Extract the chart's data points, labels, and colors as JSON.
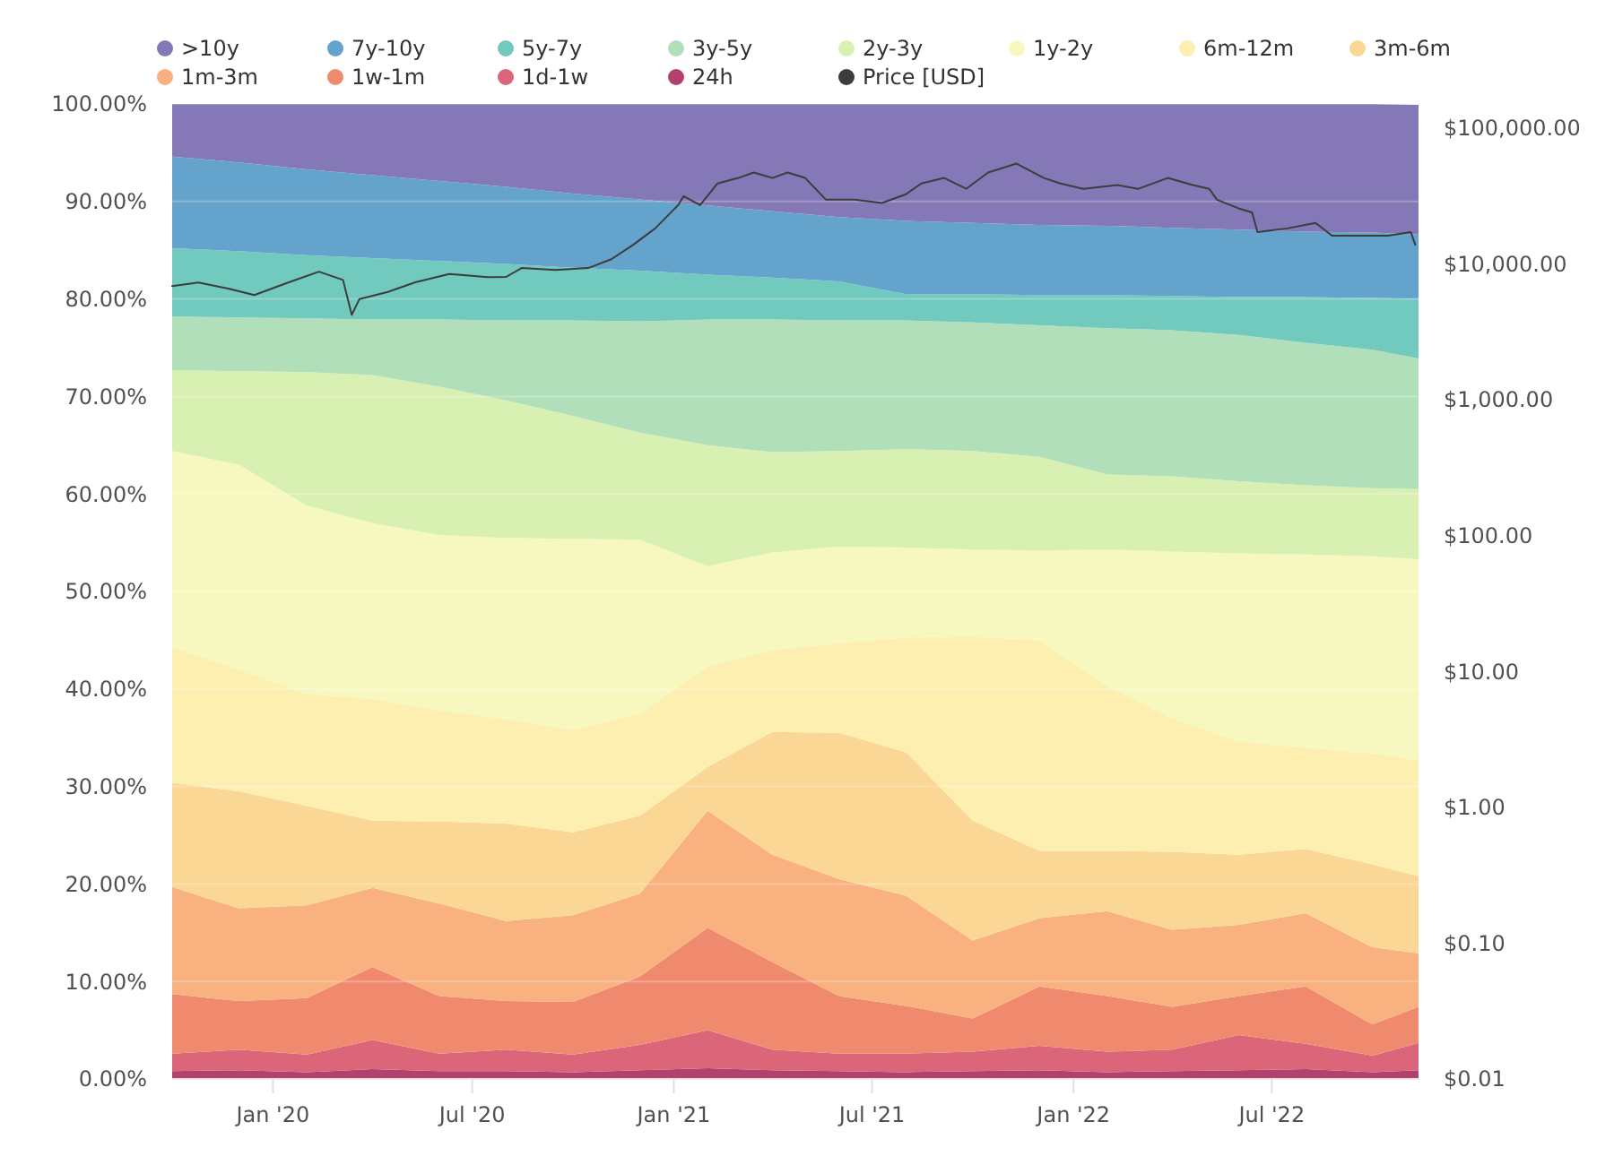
{
  "chart_data": {
    "type": "area",
    "stacked": true,
    "legend": "top",
    "grid": "y",
    "log": "y2",
    "x": [
      "2019-10-01",
      "2019-12-01",
      "2020-02-01",
      "2020-04-01",
      "2020-06-01",
      "2020-08-01",
      "2020-10-01",
      "2020-12-01",
      "2021-02-01",
      "2021-04-01",
      "2021-06-01",
      "2021-08-01",
      "2021-10-01",
      "2021-12-01",
      "2022-02-01",
      "2022-04-01",
      "2022-06-01",
      "2022-08-01",
      "2022-10-01",
      "2022-11-12"
    ],
    "xlim": [
      "2019-10-01",
      "2022-11-12"
    ],
    "xticks": [
      {
        "value": "2020-01-01",
        "label": "Jan '20"
      },
      {
        "value": "2020-07-01",
        "label": "Jul '20"
      },
      {
        "value": "2021-01-01",
        "label": "Jan '21"
      },
      {
        "value": "2021-07-01",
        "label": "Jul '21"
      },
      {
        "value": "2022-01-01",
        "label": "Jan '22"
      },
      {
        "value": "2022-07-01",
        "label": "Jul '22"
      }
    ],
    "ylim": [
      0,
      100
    ],
    "yticks": [
      {
        "value": 0,
        "label": "0.00%"
      },
      {
        "value": 10,
        "label": "10.00%"
      },
      {
        "value": 20,
        "label": "20.00%"
      },
      {
        "value": 30,
        "label": "30.00%"
      },
      {
        "value": 40,
        "label": "40.00%"
      },
      {
        "value": 50,
        "label": "50.00%"
      },
      {
        "value": 60,
        "label": "60.00%"
      },
      {
        "value": 70,
        "label": "70.00%"
      },
      {
        "value": 80,
        "label": "80.00%"
      },
      {
        "value": 90,
        "label": "90.00%"
      },
      {
        "value": 100,
        "label": "100.00%"
      }
    ],
    "y2lim": [
      0.01,
      150000
    ],
    "y2ticks": [
      {
        "value": 0.01,
        "label": "$0.01"
      },
      {
        "value": 0.1,
        "label": "$0.10"
      },
      {
        "value": 1,
        "label": "$1.00"
      },
      {
        "value": 10,
        "label": "$10.00"
      },
      {
        "value": 100,
        "label": "$100.00"
      },
      {
        "value": 1000,
        "label": "$1,000.00"
      },
      {
        "value": 10000,
        "label": "$10,000.00"
      },
      {
        "value": 100000,
        "label": "$100,000.00"
      }
    ],
    "series": [
      {
        "name": "24h",
        "color": "#b3416e",
        "values": [
          0.8,
          0.9,
          0.7,
          1.0,
          0.8,
          0.8,
          0.7,
          0.9,
          1.1,
          0.9,
          0.8,
          0.7,
          0.8,
          0.9,
          0.7,
          0.8,
          0.9,
          1.0,
          0.7,
          0.9
        ]
      },
      {
        "name": "1d-1w",
        "color": "#dc6679",
        "values": [
          1.8,
          2.1,
          1.8,
          3.0,
          1.8,
          2.2,
          1.8,
          2.6,
          3.9,
          2.1,
          1.8,
          1.9,
          2.0,
          2.5,
          2.1,
          2.2,
          3.6,
          2.6,
          1.7,
          2.8
        ]
      },
      {
        "name": "1w-1m",
        "color": "#f08a6e",
        "values": [
          6.1,
          5.0,
          5.8,
          7.5,
          5.9,
          5.0,
          5.4,
          7.0,
          10.5,
          9.0,
          5.9,
          4.9,
          3.4,
          6.1,
          5.7,
          4.4,
          4.0,
          5.9,
          3.2,
          3.7
        ]
      },
      {
        "name": "1m-3m",
        "color": "#f9b17f",
        "values": [
          11.0,
          9.5,
          9.5,
          8.1,
          9.5,
          8.2,
          8.9,
          8.5,
          12.0,
          11.0,
          12.0,
          11.3,
          8.0,
          7.0,
          8.7,
          7.9,
          7.3,
          7.5,
          7.9,
          5.5
        ]
      },
      {
        "name": "3m-6m",
        "color": "#fbd796",
        "values": [
          10.7,
          12.0,
          10.2,
          6.9,
          8.4,
          10.0,
          8.5,
          8.0,
          4.5,
          12.6,
          15.0,
          14.7,
          12.3,
          6.9,
          6.2,
          8.0,
          7.2,
          6.6,
          8.5,
          7.9
        ]
      },
      {
        "name": "6m-12m",
        "color": "#fdefb0",
        "values": [
          13.9,
          12.5,
          11.5,
          12.5,
          11.4,
          10.7,
          10.5,
          10.5,
          10.3,
          8.4,
          9.2,
          11.8,
          18.9,
          21.6,
          16.9,
          13.7,
          11.6,
          10.4,
          11.4,
          11.9
        ]
      },
      {
        "name": "1y-2y",
        "color": "#f6f8c0",
        "values": [
          20.1,
          21.0,
          19.3,
          18.0,
          18.0,
          18.6,
          19.6,
          17.8,
          10.3,
          10.0,
          9.9,
          9.2,
          8.9,
          9.2,
          14.0,
          17.1,
          19.3,
          19.8,
          20.2,
          20.6
        ]
      },
      {
        "name": "2y-3y",
        "color": "#d9f0b3",
        "values": [
          8.3,
          9.6,
          13.7,
          15.2,
          15.2,
          14.1,
          12.6,
          11.0,
          12.4,
          10.3,
          9.8,
          10.1,
          10.1,
          9.6,
          7.7,
          7.7,
          7.4,
          7.1,
          7.0,
          7.2
        ]
      },
      {
        "name": "3y-5y",
        "color": "#b0dfba",
        "values": [
          5.5,
          5.5,
          5.5,
          5.7,
          6.9,
          8.2,
          9.8,
          11.4,
          12.9,
          13.6,
          13.4,
          13.2,
          13.2,
          13.5,
          15.0,
          15.0,
          15.0,
          14.6,
          14.2,
          13.4
        ]
      },
      {
        "name": "5y-7y",
        "color": "#72c9be",
        "values": [
          7.0,
          6.8,
          6.5,
          6.3,
          6.0,
          5.8,
          5.4,
          5.2,
          4.6,
          4.3,
          4.0,
          2.7,
          2.9,
          3.1,
          3.4,
          3.5,
          3.9,
          4.7,
          5.3,
          6.1
        ]
      },
      {
        "name": "7y-10y",
        "color": "#63a3cc",
        "values": [
          9.4,
          9.1,
          8.8,
          8.5,
          8.2,
          7.9,
          7.6,
          7.3,
          7.1,
          6.8,
          6.6,
          7.5,
          7.3,
          7.2,
          7.1,
          7.0,
          6.9,
          6.7,
          6.7,
          6.6
        ]
      },
      {
        "name": ">10y",
        "color": "#8479b6",
        "values": [
          5.4,
          6.0,
          6.7,
          7.3,
          7.9,
          8.5,
          9.2,
          9.8,
          10.4,
          11.0,
          11.6,
          12.0,
          12.2,
          12.4,
          12.5,
          12.7,
          12.9,
          13.1,
          13.2,
          13.3
        ]
      },
      {
        "name": "Price [USD]",
        "type": "line",
        "axis": "y2",
        "color": "#3c3c3c",
        "x": [
          "2019-10-01",
          "2019-10-25",
          "2019-11-20",
          "2019-12-15",
          "2020-01-15",
          "2020-02-12",
          "2020-03-05",
          "2020-03-13",
          "2020-03-20",
          "2020-04-15",
          "2020-05-10",
          "2020-06-10",
          "2020-07-15",
          "2020-08-01",
          "2020-08-15",
          "2020-09-15",
          "2020-10-15",
          "2020-11-05",
          "2020-11-25",
          "2020-12-15",
          "2021-01-05",
          "2021-01-10",
          "2021-01-25",
          "2021-02-10",
          "2021-03-01",
          "2021-03-15",
          "2021-04-01",
          "2021-04-15",
          "2021-05-01",
          "2021-05-20",
          "2021-06-15",
          "2021-07-10",
          "2021-08-01",
          "2021-08-15",
          "2021-09-05",
          "2021-09-25",
          "2021-10-15",
          "2021-11-10",
          "2021-12-05",
          "2021-12-20",
          "2022-01-10",
          "2022-02-10",
          "2022-03-01",
          "2022-03-28",
          "2022-04-20",
          "2022-05-05",
          "2022-05-12",
          "2022-06-01",
          "2022-06-13",
          "2022-06-18",
          "2022-07-15",
          "2022-08-10",
          "2022-08-25",
          "2022-09-20",
          "2022-10-15",
          "2022-11-05",
          "2022-11-09"
        ],
        "values": [
          6850,
          7280,
          6600,
          5880,
          7280,
          8750,
          7600,
          4200,
          5500,
          6200,
          7300,
          8400,
          7980,
          8000,
          9300,
          9000,
          9300,
          10800,
          13800,
          18200,
          27000,
          31500,
          27000,
          39000,
          42800,
          46900,
          42800,
          46900,
          42800,
          29600,
          29600,
          28000,
          32500,
          39000,
          42800,
          35600,
          46900,
          54600,
          42800,
          39000,
          35600,
          37900,
          35600,
          42800,
          37900,
          35600,
          29600,
          25500,
          23900,
          17100,
          18200,
          20000,
          16100,
          16100,
          16100,
          17100,
          13800
        ]
      }
    ]
  }
}
